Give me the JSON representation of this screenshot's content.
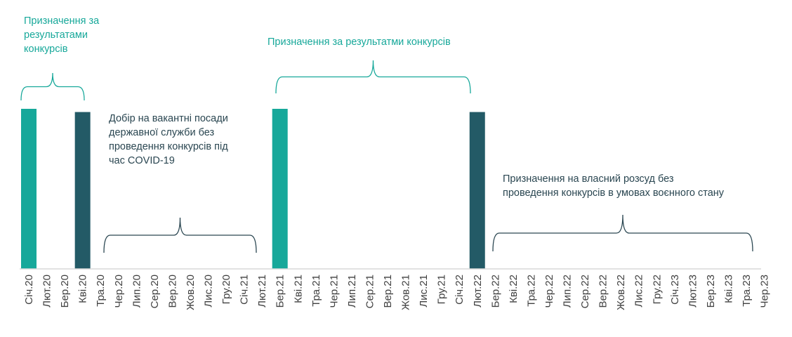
{
  "chart_data": {
    "type": "bar",
    "categories": [
      "Січ.20",
      "Лют.20",
      "Бер.20",
      "Кві.20",
      "Тра.20",
      "Чер.20",
      "Лип.20",
      "Сер.20",
      "Вер.20",
      "Жов.20",
      "Лис.20",
      "Гру.20",
      "Січ.21",
      "Лют.21",
      "Бер.21",
      "Кві.21",
      "Тра.21",
      "Чер.21",
      "Лип.21",
      "Сер.21",
      "Вер.21",
      "Жов.21",
      "Лис.21",
      "Гру.21",
      "Січ.22",
      "Лют.22",
      "Бер.22",
      "Кві.22",
      "Тра.22",
      "Чер.22",
      "Лип.22",
      "Сер.22",
      "Вер.22",
      "Жов.22",
      "Лис.22",
      "Гру.22",
      "Січ.23",
      "Лют.23",
      "Бер.23",
      "Кві.23",
      "Тра.23",
      "Чер.23"
    ],
    "bars": [
      {
        "category": "Січ.20",
        "value": 1.0,
        "color": "#17a89a"
      },
      {
        "category": "Кві.20",
        "value": 0.98,
        "color": "#235a66"
      },
      {
        "category": "Бер.21",
        "value": 1.0,
        "color": "#17a89a"
      },
      {
        "category": "Лют.22",
        "value": 0.98,
        "color": "#235a66"
      }
    ],
    "annotations": [
      {
        "text": "Призначення за\nрезультатами\nконкурсів",
        "from": "Січ.20",
        "to": "Кві.20",
        "color": "#17a89a"
      },
      {
        "text": "Добір на вакантні посади\nдержавної служби без\nпроведення конкурсів під\nчас COVID-19",
        "from": "Тра.20",
        "to": "Лют.21",
        "color": "#2a4651"
      },
      {
        "text": "Призначення за результатми конкурсів",
        "from": "Бер.21",
        "to": "Лют.22",
        "color": "#17a89a"
      },
      {
        "text": "Призначення на власний розсуд без\nпроведення конкурсів в умовах воєнного стану",
        "from": "Бер.22",
        "to": "Чер.23",
        "color": "#2a4651"
      }
    ],
    "xlabel": "",
    "ylabel": "",
    "grid": false,
    "legend": "none"
  }
}
